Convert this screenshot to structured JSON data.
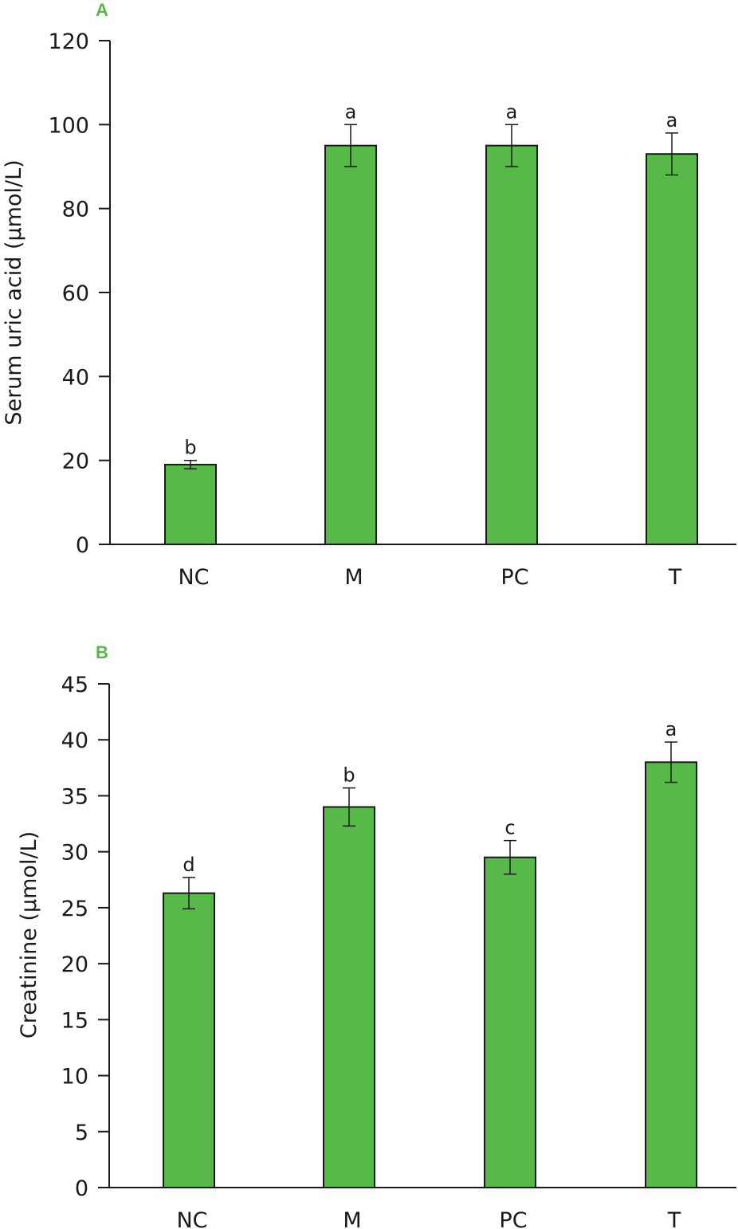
{
  "colors": {
    "bar": "#57b947",
    "panel_label": "#57b947",
    "axis": "#1a1a1a"
  },
  "chart_data": [
    {
      "type": "bar",
      "panel_label": "A",
      "title": "",
      "xlabel": "",
      "ylabel": "Serum uric acid (µmol/L)",
      "ylim": [
        0,
        120
      ],
      "yticks": [
        0,
        20,
        40,
        60,
        80,
        100,
        120
      ],
      "categories": [
        "NC",
        "M",
        "PC",
        "T"
      ],
      "values": [
        19,
        95,
        95,
        93
      ],
      "errors": [
        1,
        5,
        5,
        5
      ],
      "significance": [
        "b",
        "a",
        "a",
        "a"
      ],
      "grid": false,
      "legend": "none"
    },
    {
      "type": "bar",
      "panel_label": "B",
      "title": "",
      "xlabel": "",
      "ylabel": "Creatinine (µmol/L)",
      "ylim": [
        0,
        45
      ],
      "yticks": [
        0,
        5,
        10,
        15,
        20,
        25,
        30,
        35,
        40,
        45
      ],
      "categories": [
        "NC",
        "M",
        "PC",
        "T"
      ],
      "values": [
        26.3,
        34,
        29.5,
        38
      ],
      "errors": [
        1.4,
        1.7,
        1.5,
        1.8
      ],
      "significance": [
        "d",
        "b",
        "c",
        "a"
      ],
      "grid": false,
      "legend": "none"
    }
  ]
}
